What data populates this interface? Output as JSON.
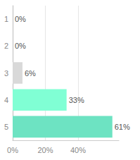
{
  "chart_data": {
    "type": "bar",
    "orientation": "horizontal",
    "categories": [
      "1",
      "2",
      "3",
      "4",
      "5"
    ],
    "values": [
      0,
      0,
      6,
      33,
      61
    ],
    "value_labels": [
      "0%",
      "0%",
      "6%",
      "33%",
      "61%"
    ],
    "colors": [
      "#d6569c",
      "#e6b3d3",
      "#d9d9d9",
      "#80ffd4",
      "#6de3c2"
    ],
    "xlim": [
      0,
      65
    ],
    "xticks": [
      {
        "value": 0,
        "label": "0%"
      },
      {
        "value": 20,
        "label": "20%"
      },
      {
        "value": 40,
        "label": "40%"
      }
    ],
    "grid": true,
    "data_labels": true
  }
}
